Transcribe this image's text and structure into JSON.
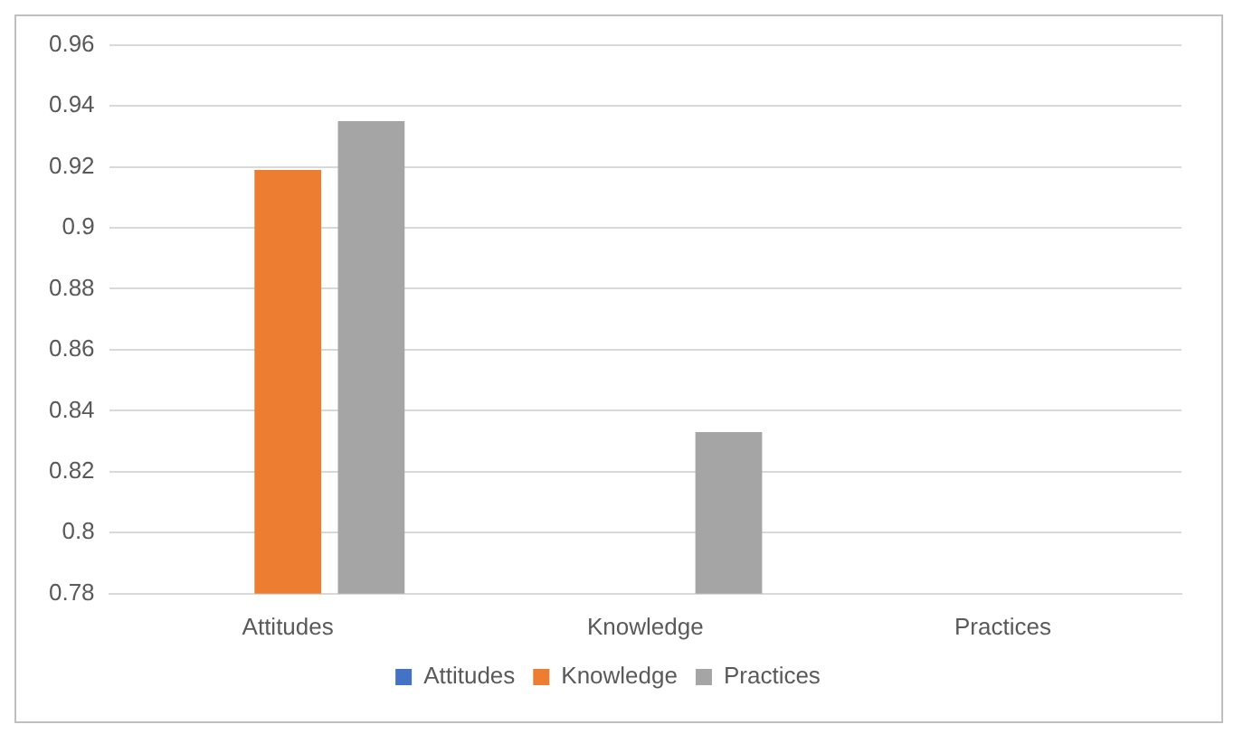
{
  "chart_data": {
    "type": "bar",
    "categories": [
      "Attitudes",
      "Knowledge",
      "Practices"
    ],
    "series": [
      {
        "name": "Attitudes",
        "color": "#4472c4",
        "values": [
          null,
          null,
          null
        ]
      },
      {
        "name": "Knowledge",
        "color": "#ed7d31",
        "values": [
          0.919,
          null,
          null
        ]
      },
      {
        "name": "Practices",
        "color": "#a5a5a5",
        "values": [
          0.935,
          0.833,
          null
        ]
      }
    ],
    "ylim": [
      0.78,
      0.96
    ],
    "yticks": [
      0.78,
      0.8,
      0.82,
      0.84,
      0.86,
      0.88,
      0.9,
      0.92,
      0.94,
      0.96
    ],
    "grid": "y",
    "legend": "bottom"
  }
}
